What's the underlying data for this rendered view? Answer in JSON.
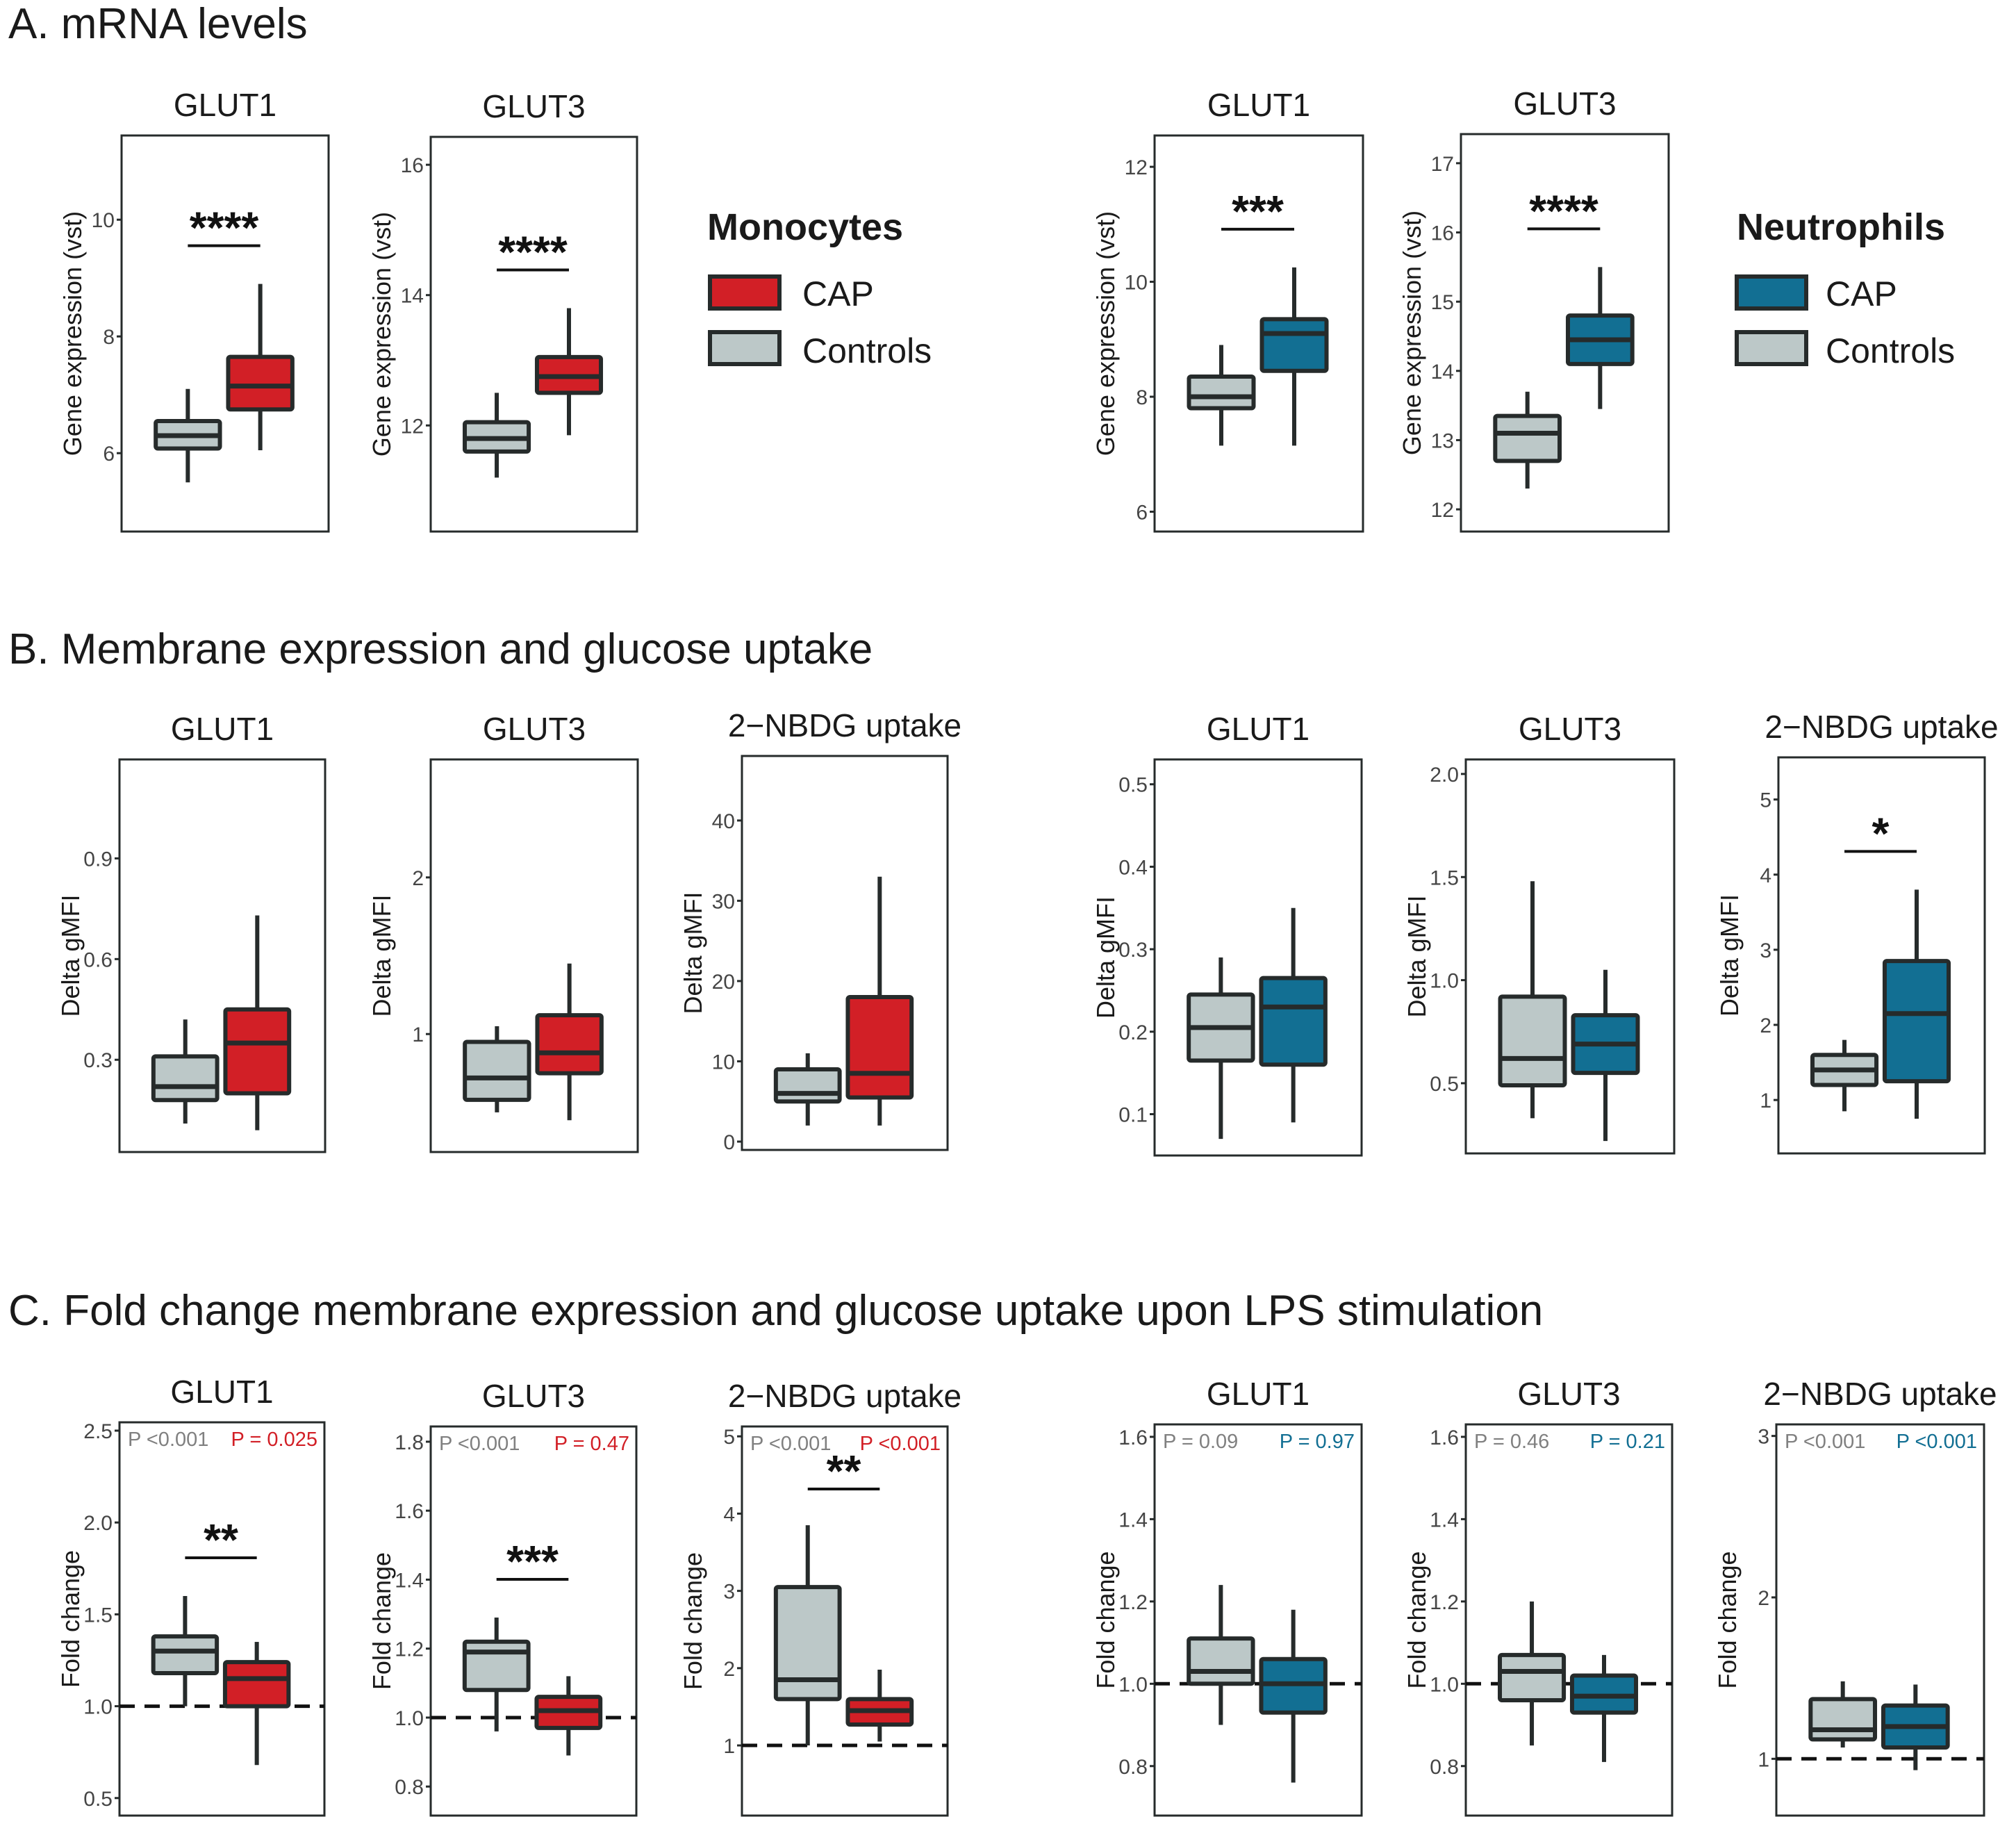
{
  "colors": {
    "cap_mono": "#d21f26",
    "cap_neut": "#126f93",
    "controls": "#bcc8c8",
    "outline": "#262b2b",
    "axis_text": "#454545",
    "pgray": "#808080"
  },
  "sections": [
    {
      "label": "A. mRNA levels"
    },
    {
      "label": "B. Membrane expression and glucose uptake"
    },
    {
      "label": "C. Fold change membrane expression and glucose uptake upon LPS stimulation"
    }
  ],
  "legends": [
    {
      "title": "Monocytes",
      "items": [
        {
          "label": "CAP"
        },
        {
          "label": "Controls"
        }
      ]
    },
    {
      "title": "Neutrophils",
      "items": [
        {
          "label": "CAP"
        },
        {
          "label": "Controls"
        }
      ]
    }
  ],
  "chart_data": [
    {
      "id": "A-mono-GLUT1",
      "type": "box",
      "title": "GLUT1",
      "ylabel": "Gene expression (vst)",
      "cell_type": "Monocytes",
      "ylim": [
        4.8,
        11.3
      ],
      "yticks": [
        6,
        8,
        10
      ],
      "ytick_labels": [
        "6",
        "8",
        "10"
      ],
      "significance": "****",
      "boxes": [
        {
          "group": "Controls",
          "whisker_low": 5.5,
          "q1": 6.08,
          "median": 6.3,
          "q3": 6.55,
          "whisker_high": 7.1
        },
        {
          "group": "CAP",
          "whisker_low": 6.05,
          "q1": 6.75,
          "median": 7.15,
          "q3": 7.65,
          "whisker_high": 8.9
        }
      ]
    },
    {
      "id": "A-mono-GLUT3",
      "type": "box",
      "title": "GLUT3",
      "ylabel": "Gene expression (vst)",
      "cell_type": "Monocytes",
      "ylim": [
        10.5,
        16.3
      ],
      "yticks": [
        12,
        14,
        16
      ],
      "ytick_labels": [
        "12",
        "14",
        "16"
      ],
      "significance": "****",
      "boxes": [
        {
          "group": "Controls",
          "whisker_low": 11.2,
          "q1": 11.6,
          "median": 11.8,
          "q3": 12.05,
          "whisker_high": 12.5
        },
        {
          "group": "CAP",
          "whisker_low": 11.85,
          "q1": 12.5,
          "median": 12.75,
          "q3": 13.05,
          "whisker_high": 13.8
        }
      ]
    },
    {
      "id": "A-neut-GLUT1",
      "type": "box",
      "title": "GLUT1",
      "ylabel": "Gene expression (vst)",
      "cell_type": "Neutrophils",
      "ylim": [
        5.8,
        12.4
      ],
      "yticks": [
        6,
        8,
        10,
        12
      ],
      "ytick_labels": [
        "6",
        "8",
        "10",
        "12"
      ],
      "significance": "***",
      "boxes": [
        {
          "group": "Controls",
          "whisker_low": 7.15,
          "q1": 7.8,
          "median": 8.0,
          "q3": 8.35,
          "whisker_high": 8.9
        },
        {
          "group": "CAP",
          "whisker_low": 7.15,
          "q1": 8.45,
          "median": 9.1,
          "q3": 9.35,
          "whisker_high": 10.25
        }
      ]
    },
    {
      "id": "A-neut-GLUT3",
      "type": "box",
      "title": "GLUT3",
      "ylabel": "Gene expression (vst)",
      "cell_type": "Neutrophils",
      "ylim": [
        11.8,
        17.3
      ],
      "yticks": [
        12,
        13,
        14,
        15,
        16,
        17
      ],
      "ytick_labels": [
        "12",
        "13",
        "14",
        "15",
        "16",
        "17"
      ],
      "significance": "****",
      "boxes": [
        {
          "group": "Controls",
          "whisker_low": 12.3,
          "q1": 12.7,
          "median": 13.1,
          "q3": 13.35,
          "whisker_high": 13.7
        },
        {
          "group": "CAP",
          "whisker_low": 13.45,
          "q1": 14.1,
          "median": 14.45,
          "q3": 14.8,
          "whisker_high": 15.5
        }
      ]
    },
    {
      "id": "B-mono-GLUT1",
      "type": "box",
      "title": "GLUT1",
      "ylabel": "Delta gMFI",
      "cell_type": "Monocytes",
      "ylim": [
        0.05,
        1.17
      ],
      "yticks": [
        0.3,
        0.6,
        0.9
      ],
      "ytick_labels": [
        "0.3",
        "0.6",
        "0.9"
      ],
      "significance": "",
      "boxes": [
        {
          "group": "Controls",
          "whisker_low": 0.11,
          "q1": 0.18,
          "median": 0.22,
          "q3": 0.31,
          "whisker_high": 0.42
        },
        {
          "group": "CAP",
          "whisker_low": 0.09,
          "q1": 0.2,
          "median": 0.35,
          "q3": 0.45,
          "whisker_high": 0.73
        }
      ]
    },
    {
      "id": "B-mono-GLUT3",
      "type": "box",
      "title": "GLUT3",
      "ylabel": "Delta gMFI",
      "cell_type": "Monocytes",
      "ylim": [
        0.3,
        2.7
      ],
      "yticks": [
        1,
        2
      ],
      "ytick_labels": [
        "1",
        "2"
      ],
      "significance": "",
      "boxes": [
        {
          "group": "Controls",
          "whisker_low": 0.5,
          "q1": 0.58,
          "median": 0.72,
          "q3": 0.95,
          "whisker_high": 1.05
        },
        {
          "group": "CAP",
          "whisker_low": 0.45,
          "q1": 0.75,
          "median": 0.88,
          "q3": 1.12,
          "whisker_high": 1.45
        }
      ]
    },
    {
      "id": "B-mono-2NBDG",
      "type": "box",
      "title": "2−NBDG uptake",
      "ylabel": "Delta gMFI",
      "cell_type": "Monocytes",
      "ylim": [
        0,
        47
      ],
      "yticks": [
        0,
        10,
        20,
        30,
        40
      ],
      "ytick_labels": [
        "0",
        "10",
        "20",
        "30",
        "40"
      ],
      "significance": "",
      "boxes": [
        {
          "group": "Controls",
          "whisker_low": 2,
          "q1": 5,
          "median": 6,
          "q3": 9,
          "whisker_high": 11
        },
        {
          "group": "CAP",
          "whisker_low": 2,
          "q1": 5.5,
          "median": 8.5,
          "q3": 18,
          "whisker_high": 33
        }
      ]
    },
    {
      "id": "B-neut-GLUT1",
      "type": "box",
      "title": "GLUT1",
      "ylabel": "Delta gMFI",
      "cell_type": "Neutrophils",
      "ylim": [
        0.06,
        0.52
      ],
      "yticks": [
        0.1,
        0.2,
        0.3,
        0.4,
        0.5
      ],
      "ytick_labels": [
        "0.1",
        "0.2",
        "0.3",
        "0.4",
        "0.5"
      ],
      "significance": "",
      "boxes": [
        {
          "group": "Controls",
          "whisker_low": 0.07,
          "q1": 0.165,
          "median": 0.205,
          "q3": 0.245,
          "whisker_high": 0.29
        },
        {
          "group": "CAP",
          "whisker_low": 0.09,
          "q1": 0.16,
          "median": 0.23,
          "q3": 0.265,
          "whisker_high": 0.35
        }
      ]
    },
    {
      "id": "B-neut-GLUT3",
      "type": "box",
      "title": "GLUT3",
      "ylabel": "Delta gMFI",
      "cell_type": "Neutrophils",
      "ylim": [
        0.2,
        2.03
      ],
      "yticks": [
        0.5,
        1.0,
        1.5,
        2.0
      ],
      "ytick_labels": [
        "0.5",
        "1.0",
        "1.5",
        "2.0"
      ],
      "significance": "",
      "boxes": [
        {
          "group": "Controls",
          "whisker_low": 0.33,
          "q1": 0.49,
          "median": 0.62,
          "q3": 0.92,
          "whisker_high": 1.48
        },
        {
          "group": "CAP",
          "whisker_low": 0.22,
          "q1": 0.55,
          "median": 0.69,
          "q3": 0.83,
          "whisker_high": 1.05
        }
      ]
    },
    {
      "id": "B-neut-2NBDG",
      "type": "box",
      "title": "2−NBDG uptake",
      "ylabel": "Delta gMFI",
      "cell_type": "Neutrophils",
      "ylim": [
        0.4,
        5.45
      ],
      "yticks": [
        1,
        2,
        3,
        4,
        5
      ],
      "ytick_labels": [
        "1",
        "2",
        "3",
        "4",
        "5"
      ],
      "significance": "*",
      "boxes": [
        {
          "group": "Controls",
          "whisker_low": 0.85,
          "q1": 1.2,
          "median": 1.4,
          "q3": 1.6,
          "whisker_high": 1.8
        },
        {
          "group": "CAP",
          "whisker_low": 0.75,
          "q1": 1.25,
          "median": 2.15,
          "q3": 2.85,
          "whisker_high": 3.8
        }
      ]
    },
    {
      "id": "C-mono-GLUT1",
      "type": "box",
      "title": "GLUT1",
      "ylabel": "Fold change",
      "cell_type": "Monocytes",
      "ylim": [
        0.45,
        2.5
      ],
      "yticks": [
        0.5,
        1.0,
        1.5,
        2.0,
        2.5
      ],
      "ytick_labels": [
        "0.5",
        "1.0",
        "1.5",
        "2.0",
        "2.5"
      ],
      "significance": "**",
      "reference_line": 1.0,
      "p_left": "P <0.001",
      "p_right": "P = 0.025",
      "boxes": [
        {
          "group": "Controls",
          "whisker_low": 1.0,
          "q1": 1.18,
          "median": 1.3,
          "q3": 1.38,
          "whisker_high": 1.6
        },
        {
          "group": "CAP",
          "whisker_low": 0.68,
          "q1": 1.0,
          "median": 1.15,
          "q3": 1.24,
          "whisker_high": 1.35
        }
      ]
    },
    {
      "id": "C-mono-GLUT3",
      "type": "box",
      "title": "GLUT3",
      "ylabel": "Fold change",
      "cell_type": "Monocytes",
      "ylim": [
        0.74,
        1.82
      ],
      "yticks": [
        0.8,
        1.0,
        1.2,
        1.4,
        1.6,
        1.8
      ],
      "ytick_labels": [
        "0.8",
        "1.0",
        "1.2",
        "1.4",
        "1.6",
        "1.8"
      ],
      "significance": "***",
      "reference_line": 1.0,
      "p_left": "P <0.001",
      "p_right": "P = 0.47",
      "boxes": [
        {
          "group": "Controls",
          "whisker_low": 0.96,
          "q1": 1.08,
          "median": 1.19,
          "q3": 1.22,
          "whisker_high": 1.29
        },
        {
          "group": "CAP",
          "whisker_low": 0.89,
          "q1": 0.97,
          "median": 1.02,
          "q3": 1.06,
          "whisker_high": 1.12
        }
      ]
    },
    {
      "id": "C-mono-2NBDG",
      "type": "box",
      "title": "2−NBDG uptake",
      "ylabel": "Fold change",
      "cell_type": "Monocytes",
      "ylim": [
        0.2,
        5.02
      ],
      "yticks": [
        1,
        2,
        3,
        4,
        5
      ],
      "ytick_labels": [
        "1",
        "2",
        "3",
        "4",
        "5"
      ],
      "significance": "**",
      "reference_line": 1.0,
      "p_left": "P <0.001",
      "p_right": "P <0.001",
      "boxes": [
        {
          "group": "Controls",
          "whisker_low": 1.0,
          "q1": 1.6,
          "median": 1.85,
          "q3": 3.05,
          "whisker_high": 3.85
        },
        {
          "group": "CAP",
          "whisker_low": 1.05,
          "q1": 1.27,
          "median": 1.45,
          "q3": 1.6,
          "whisker_high": 1.98
        }
      ]
    },
    {
      "id": "C-neut-GLUT1",
      "type": "box",
      "title": "GLUT1",
      "ylabel": "Fold change",
      "cell_type": "Neutrophils",
      "ylim": [
        0.7,
        1.61
      ],
      "yticks": [
        0.8,
        1.0,
        1.2,
        1.4,
        1.6
      ],
      "ytick_labels": [
        "0.8",
        "1.0",
        "1.2",
        "1.4",
        "1.6"
      ],
      "significance": "",
      "reference_line": 1.0,
      "p_left": "P = 0.09",
      "p_right": "P = 0.97",
      "boxes": [
        {
          "group": "Controls",
          "whisker_low": 0.9,
          "q1": 1.0,
          "median": 1.03,
          "q3": 1.11,
          "whisker_high": 1.24
        },
        {
          "group": "CAP",
          "whisker_low": 0.76,
          "q1": 0.93,
          "median": 1.0,
          "q3": 1.06,
          "whisker_high": 1.18
        }
      ]
    },
    {
      "id": "C-neut-GLUT3",
      "type": "box",
      "title": "GLUT3",
      "ylabel": "Fold change",
      "cell_type": "Neutrophils",
      "ylim": [
        0.7,
        1.61
      ],
      "yticks": [
        0.8,
        1.0,
        1.2,
        1.4,
        1.6
      ],
      "ytick_labels": [
        "0.8",
        "1.0",
        "1.2",
        "1.4",
        "1.6"
      ],
      "significance": "",
      "reference_line": 1.0,
      "p_left": "P = 0.46",
      "p_right": "P = 0.21",
      "boxes": [
        {
          "group": "Controls",
          "whisker_low": 0.85,
          "q1": 0.96,
          "median": 1.03,
          "q3": 1.07,
          "whisker_high": 1.2
        },
        {
          "group": "CAP",
          "whisker_low": 0.81,
          "q1": 0.93,
          "median": 0.97,
          "q3": 1.02,
          "whisker_high": 1.07
        }
      ]
    },
    {
      "id": "C-neut-2NBDG",
      "type": "box",
      "title": "2−NBDG uptake",
      "ylabel": "Fold change",
      "cell_type": "Neutrophils",
      "ylim": [
        0.7,
        3.02
      ],
      "yticks": [
        1,
        2,
        3
      ],
      "ytick_labels": [
        "1",
        "2",
        "3"
      ],
      "significance": "",
      "reference_line": 1.0,
      "p_left": "P <0.001",
      "p_right": "P <0.001",
      "boxes": [
        {
          "group": "Controls",
          "whisker_low": 1.07,
          "q1": 1.12,
          "median": 1.18,
          "q3": 1.37,
          "whisker_high": 1.48
        },
        {
          "group": "CAP",
          "whisker_low": 0.93,
          "q1": 1.07,
          "median": 1.2,
          "q3": 1.33,
          "whisker_high": 1.46
        }
      ]
    }
  ]
}
